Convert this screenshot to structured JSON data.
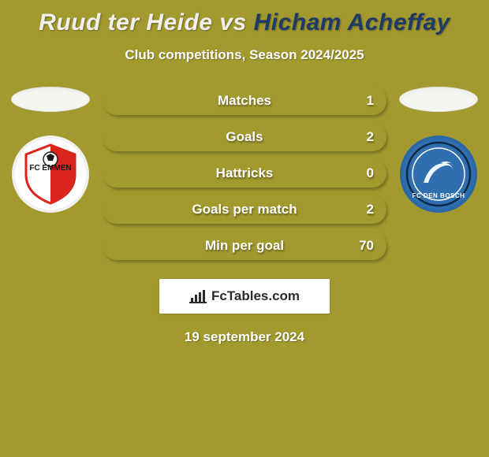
{
  "background_color": "#a39a2f",
  "title": {
    "player_a": "Ruud ter Heide",
    "vs": "vs",
    "player_b": "Hicham Acheffay",
    "color_a": "#f0f0f0",
    "color_vs": "#f0f0f0",
    "color_b": "#1e3a66",
    "fontsize": 30
  },
  "subtitle": "Club competitions, Season 2024/2025",
  "bar": {
    "fill_color": "#a39a2f",
    "height": 36,
    "radius": 18,
    "label_color": "#ffffff",
    "value_color": "#ffffff",
    "fontsize": 17
  },
  "stats": [
    {
      "label": "Matches",
      "value": "1"
    },
    {
      "label": "Goals",
      "value": "2"
    },
    {
      "label": "Hattricks",
      "value": "0"
    },
    {
      "label": "Goals per match",
      "value": "2"
    },
    {
      "label": "Min per goal",
      "value": "70"
    }
  ],
  "left_club": {
    "name": "FC EMMEN",
    "badge_bg": "#ffffff",
    "badge_accent": "#d9251d",
    "badge_text_color": "#1a1a1a"
  },
  "right_club": {
    "name": "FC DEN BOSCH",
    "badge_bg": "#2f6fb0",
    "badge_accent": "#eef4fa",
    "badge_text_color": "#ffffff"
  },
  "brand": "FcTables.com",
  "date": "19 september 2024",
  "avatar_oval_color": "#f5f5f2"
}
